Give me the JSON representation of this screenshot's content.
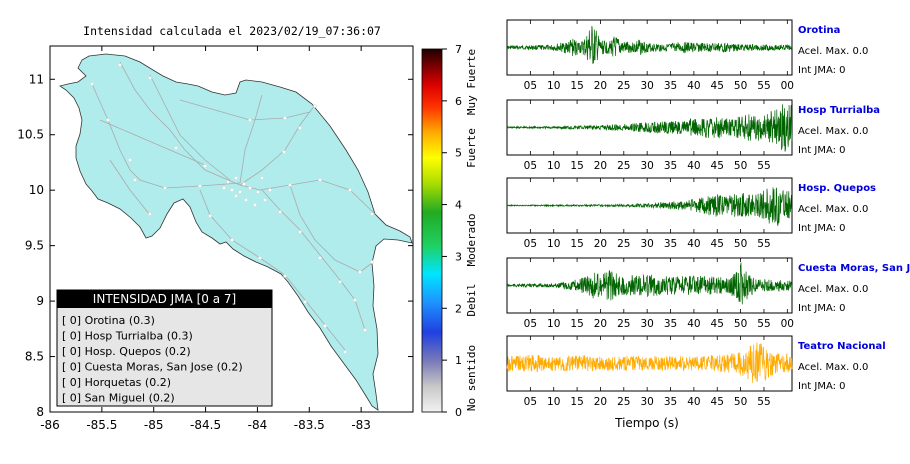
{
  "map": {
    "title": "Intensidad calculada el 2023/02/19_07:36:07",
    "x_ticks": [
      "-86",
      "-85.5",
      "-85",
      "-84.5",
      "-84",
      "-83.5",
      "-83"
    ],
    "y_ticks": [
      "11",
      "10.5",
      "10",
      "9.5",
      "9",
      "8.5",
      "8"
    ],
    "land_color": "#b0ecec",
    "road_color": "#b0b0b0",
    "station_color": "#ffffff"
  },
  "legend": {
    "title": "INTENSIDAD JMA [0 a 7]",
    "items": [
      "[ 0]  Orotina (0.3)",
      "[ 0]  Hosp Turrialba (0.3)",
      "[ 0]  Hosp. Quepos (0.2)",
      "[ 0]  Cuesta Moras, San Jose (0.2)",
      "[ 0]  Horquetas (0.2)",
      "[ 0]  San Miguel (0.2)"
    ]
  },
  "colorbar": {
    "ticks": [
      "7",
      "6",
      "5",
      "4",
      "3",
      "2",
      "1",
      "0"
    ],
    "category_labels": [
      "Muy Fuerte",
      "Fuerte",
      "Moderado",
      "Debil",
      "No sentido"
    ]
  },
  "chart_data": [
    {
      "type": "heatmap",
      "title": "Intensidad calculada el 2023/02/19_07:36:07",
      "xlabel": "",
      "ylabel": "",
      "xlim": [
        -86,
        -82.5
      ],
      "ylim": [
        8,
        11.3
      ],
      "colorbar_range": [
        0,
        7
      ],
      "stations": [
        {
          "name": "Orotina",
          "intensity": 0.3
        },
        {
          "name": "Hosp Turrialba",
          "intensity": 0.3
        },
        {
          "name": "Hosp. Quepos",
          "intensity": 0.2
        },
        {
          "name": "Cuesta Moras, San Jose",
          "intensity": 0.2
        },
        {
          "name": "Horquetas",
          "intensity": 0.2
        },
        {
          "name": "San Miguel",
          "intensity": 0.2
        }
      ]
    },
    {
      "type": "line",
      "xlabel": "Tiempo (s)",
      "panels": [
        {
          "station": "Orotina",
          "accel_label": "Acel. Max. 0.0",
          "int_label": "Int JMA: 0",
          "color": "#006400",
          "tick_labels": [
            "05",
            "10",
            "15",
            "20",
            "25",
            "30",
            "35",
            "40",
            "45",
            "50",
            "55",
            "00"
          ],
          "tick_start": 5,
          "tick_end": 60,
          "envelope": [
            [
              0,
              0.07
            ],
            [
              5,
              0.09
            ],
            [
              9,
              0.1
            ],
            [
              12,
              0.2
            ],
            [
              14,
              0.35
            ],
            [
              16,
              0.25
            ],
            [
              17,
              0.5
            ],
            [
              18,
              0.95
            ],
            [
              19,
              0.7
            ],
            [
              20,
              0.3
            ],
            [
              22,
              0.25
            ],
            [
              23,
              0.45
            ],
            [
              25,
              0.25
            ],
            [
              27,
              0.2
            ],
            [
              28,
              0.35
            ],
            [
              30,
              0.18
            ],
            [
              35,
              0.15
            ],
            [
              38,
              0.22
            ],
            [
              42,
              0.18
            ],
            [
              46,
              0.2
            ],
            [
              50,
              0.13
            ],
            [
              55,
              0.12
            ],
            [
              61,
              0.1
            ]
          ]
        },
        {
          "station": "Hosp Turrialba",
          "accel_label": "Acel. Max. 0.0",
          "int_label": "Int JMA: 0",
          "color": "#006400",
          "tick_labels": [
            "05",
            "10",
            "15",
            "20",
            "25",
            "30",
            "35",
            "40",
            "45",
            "50",
            "55"
          ],
          "tick_start": 5,
          "tick_end": 55,
          "envelope": [
            [
              0,
              0.03
            ],
            [
              10,
              0.05
            ],
            [
              20,
              0.1
            ],
            [
              25,
              0.15
            ],
            [
              30,
              0.2
            ],
            [
              35,
              0.25
            ],
            [
              40,
              0.35
            ],
            [
              45,
              0.45
            ],
            [
              48,
              0.35
            ],
            [
              52,
              0.55
            ],
            [
              55,
              0.5
            ],
            [
              57,
              0.7
            ],
            [
              59,
              0.95
            ]
          ]
        },
        {
          "station": "Hosp. Quepos",
          "accel_label": "Acel. Max. 0.0",
          "int_label": "Int JMA: 0",
          "color": "#006400",
          "tick_labels": [
            "05",
            "10",
            "15",
            "20",
            "25",
            "30",
            "35",
            "40",
            "45",
            "50",
            "55"
          ],
          "tick_start": 5,
          "tick_end": 55,
          "envelope": [
            [
              0,
              0.02
            ],
            [
              15,
              0.03
            ],
            [
              25,
              0.05
            ],
            [
              32,
              0.1
            ],
            [
              38,
              0.2
            ],
            [
              42,
              0.35
            ],
            [
              45,
              0.45
            ],
            [
              48,
              0.4
            ],
            [
              50,
              0.55
            ],
            [
              53,
              0.4
            ],
            [
              56,
              0.7
            ],
            [
              58,
              0.9
            ],
            [
              59,
              0.6
            ]
          ]
        },
        {
          "station": "Cuesta Moras, San Jose",
          "accel_label": "Acel. Max. 0.0",
          "int_label": "Int JMA: 0",
          "color": "#006400",
          "tick_labels": [
            "05",
            "10",
            "15",
            "20",
            "25",
            "30",
            "35",
            "40",
            "45",
            "50",
            "55",
            "00"
          ],
          "tick_start": 5,
          "tick_end": 60,
          "envelope": [
            [
              0,
              0.05
            ],
            [
              10,
              0.08
            ],
            [
              14,
              0.2
            ],
            [
              17,
              0.35
            ],
            [
              18,
              0.55
            ],
            [
              20,
              0.45
            ],
            [
              22,
              0.6
            ],
            [
              25,
              0.4
            ],
            [
              30,
              0.45
            ],
            [
              35,
              0.35
            ],
            [
              40,
              0.4
            ],
            [
              45,
              0.35
            ],
            [
              47,
              0.3
            ],
            [
              49,
              0.5
            ],
            [
              50,
              0.95
            ],
            [
              51,
              0.6
            ],
            [
              53,
              0.3
            ],
            [
              55,
              0.25
            ],
            [
              61,
              0.2
            ]
          ]
        },
        {
          "station": "Teatro Nacional",
          "accel_label": "Acel. Max. 0.0",
          "int_label": "Int JMA: 0",
          "color": "#ffaa00",
          "tick_labels": [
            "05",
            "10",
            "15",
            "20",
            "25",
            "30",
            "35",
            "40",
            "45",
            "50",
            "55"
          ],
          "tick_start": 5,
          "tick_end": 55,
          "envelope": [
            [
              0,
              0.3
            ],
            [
              5,
              0.35
            ],
            [
              10,
              0.3
            ],
            [
              15,
              0.35
            ],
            [
              20,
              0.28
            ],
            [
              25,
              0.3
            ],
            [
              30,
              0.28
            ],
            [
              35,
              0.3
            ],
            [
              40,
              0.28
            ],
            [
              45,
              0.35
            ],
            [
              49,
              0.4
            ],
            [
              51,
              0.55
            ],
            [
              53,
              0.85
            ],
            [
              55,
              0.75
            ],
            [
              57,
              0.45
            ],
            [
              59,
              0.4
            ]
          ]
        }
      ]
    }
  ]
}
